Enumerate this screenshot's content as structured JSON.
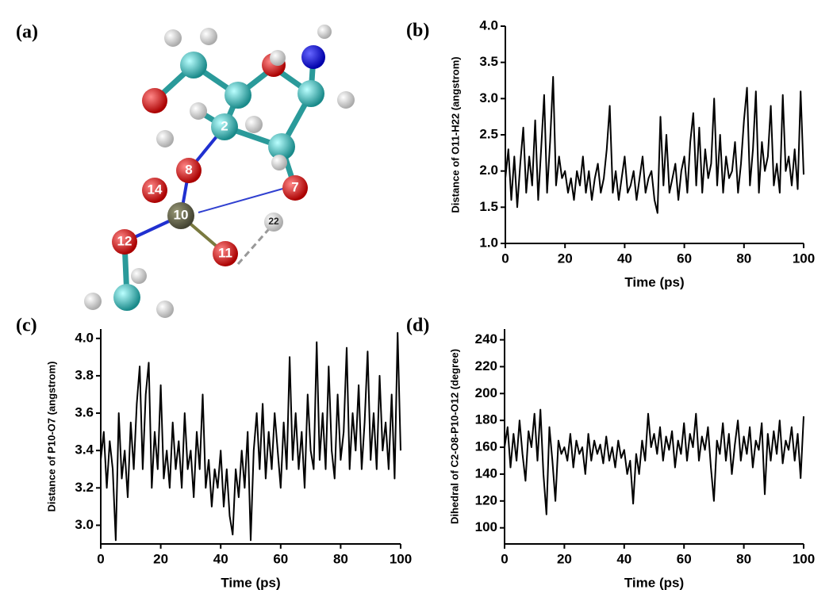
{
  "molecule": {
    "label": "(a)",
    "atoms": [
      "2",
      "8",
      "14",
      "10",
      "7",
      "22",
      "12",
      "11"
    ]
  },
  "chart_data": [
    {
      "type": "line",
      "label": "(b)",
      "x_label": "Time (ps)",
      "y_label": "Distance of O11-H22 (angstrom)",
      "x": [
        0,
        1,
        2,
        3,
        4,
        5,
        6,
        7,
        8,
        9,
        10,
        11,
        12,
        13,
        14,
        15,
        16,
        17,
        18,
        19,
        20,
        21,
        22,
        23,
        24,
        25,
        26,
        27,
        28,
        29,
        30,
        31,
        32,
        33,
        34,
        35,
        36,
        37,
        38,
        39,
        40,
        41,
        42,
        43,
        44,
        45,
        46,
        47,
        48,
        49,
        50,
        51,
        52,
        53,
        54,
        55,
        56,
        57,
        58,
        59,
        60,
        61,
        62,
        63,
        64,
        65,
        66,
        67,
        68,
        69,
        70,
        71,
        72,
        73,
        74,
        75,
        76,
        77,
        78,
        79,
        80,
        81,
        82,
        83,
        84,
        85,
        86,
        87,
        88,
        89,
        90,
        91,
        92,
        93,
        94,
        95,
        96,
        97,
        98,
        99,
        100
      ],
      "values": [
        1.9,
        2.3,
        1.6,
        2.2,
        1.5,
        2.1,
        2.6,
        1.7,
        2.2,
        1.8,
        2.7,
        1.6,
        2.3,
        3.05,
        1.7,
        2.4,
        3.3,
        1.8,
        2.2,
        1.9,
        2.0,
        1.7,
        1.9,
        1.6,
        2.0,
        1.8,
        2.2,
        1.7,
        2.0,
        1.6,
        1.9,
        2.1,
        1.7,
        1.9,
        2.3,
        2.9,
        1.7,
        2.0,
        1.6,
        1.9,
        2.2,
        1.7,
        1.8,
        2.0,
        1.6,
        1.9,
        2.2,
        1.7,
        1.9,
        2.0,
        1.6,
        1.42,
        2.75,
        1.8,
        2.5,
        1.7,
        1.9,
        2.1,
        1.6,
        2.0,
        2.2,
        1.7,
        2.4,
        2.8,
        1.8,
        2.6,
        1.7,
        2.3,
        1.9,
        2.1,
        3.0,
        1.8,
        2.5,
        1.7,
        2.2,
        1.9,
        2.0,
        2.4,
        1.7,
        2.1,
        2.7,
        3.15,
        1.8,
        2.3,
        3.1,
        1.7,
        2.4,
        2.0,
        2.2,
        2.9,
        1.8,
        2.1,
        1.7,
        3.05,
        2.0,
        2.2,
        1.8,
        2.3,
        1.75,
        3.1,
        1.95
      ],
      "color": "#000000",
      "xlim": [
        0,
        100
      ],
      "xticks": [
        0,
        20,
        40,
        60,
        80,
        100
      ],
      "ylim": [
        1.0,
        4.0
      ],
      "yticks": [
        {
          "value": 1,
          "label": "1.0"
        },
        1.5,
        {
          "value": 2,
          "label": "2.0"
        },
        2.5,
        {
          "value": 3,
          "label": "3.0"
        },
        3.5,
        {
          "value": 4,
          "label": "4.0"
        }
      ]
    },
    {
      "type": "line",
      "label": "(c)",
      "x_label": "Time (ps)",
      "y_label": "Distance of P10-O7 (angstrom)",
      "x": [
        0,
        1,
        2,
        3,
        4,
        5,
        6,
        7,
        8,
        9,
        10,
        11,
        12,
        13,
        14,
        15,
        16,
        17,
        18,
        19,
        20,
        21,
        22,
        23,
        24,
        25,
        26,
        27,
        28,
        29,
        30,
        31,
        32,
        33,
        34,
        35,
        36,
        37,
        38,
        39,
        40,
        41,
        42,
        43,
        44,
        45,
        46,
        47,
        48,
        49,
        50,
        51,
        52,
        53,
        54,
        55,
        56,
        57,
        58,
        59,
        60,
        61,
        62,
        63,
        64,
        65,
        66,
        67,
        68,
        69,
        70,
        71,
        72,
        73,
        74,
        75,
        76,
        77,
        78,
        79,
        80,
        81,
        82,
        83,
        84,
        85,
        86,
        87,
        88,
        89,
        90,
        91,
        92,
        93,
        94,
        95,
        96,
        97,
        98,
        99,
        100
      ],
      "values": [
        3.35,
        3.5,
        3.2,
        3.45,
        3.3,
        2.92,
        3.6,
        3.25,
        3.4,
        3.15,
        3.55,
        3.3,
        3.65,
        3.85,
        3.3,
        3.7,
        3.87,
        3.2,
        3.5,
        3.3,
        3.75,
        3.25,
        3.4,
        3.2,
        3.55,
        3.3,
        3.45,
        3.2,
        3.6,
        3.3,
        3.4,
        3.15,
        3.5,
        3.3,
        3.7,
        3.2,
        3.35,
        3.1,
        3.3,
        3.2,
        3.4,
        3.1,
        3.3,
        3.05,
        2.95,
        3.3,
        3.15,
        3.4,
        3.2,
        3.5,
        2.92,
        3.4,
        3.6,
        3.3,
        3.65,
        3.25,
        3.5,
        3.3,
        3.6,
        3.4,
        3.2,
        3.55,
        3.3,
        3.9,
        3.35,
        3.6,
        3.3,
        3.5,
        3.2,
        3.7,
        3.4,
        3.3,
        3.98,
        3.35,
        3.6,
        3.3,
        3.85,
        3.4,
        3.25,
        3.7,
        3.35,
        3.5,
        3.95,
        3.3,
        3.6,
        3.4,
        3.75,
        3.3,
        3.55,
        3.93,
        3.35,
        3.6,
        3.3,
        3.8,
        3.4,
        3.55,
        3.3,
        3.7,
        3.25,
        4.03,
        3.4
      ],
      "color": "#000000",
      "xlim": [
        0,
        100
      ],
      "xticks": [
        0,
        20,
        40,
        60,
        80,
        100
      ],
      "ylim": [
        2.9,
        4.05
      ],
      "yticks": [
        {
          "value": 3,
          "label": "3.0"
        },
        3.2,
        3.4,
        3.6,
        3.8,
        {
          "value": 4,
          "label": "4.0"
        }
      ]
    },
    {
      "type": "line",
      "label": "(d)",
      "x_label": "Time (ps)",
      "y_label": "Dihedral of C2-O8-P10-O12 (degree)",
      "x": [
        0,
        1,
        2,
        3,
        4,
        5,
        6,
        7,
        8,
        9,
        10,
        11,
        12,
        13,
        14,
        15,
        16,
        17,
        18,
        19,
        20,
        21,
        22,
        23,
        24,
        25,
        26,
        27,
        28,
        29,
        30,
        31,
        32,
        33,
        34,
        35,
        36,
        37,
        38,
        39,
        40,
        41,
        42,
        43,
        44,
        45,
        46,
        47,
        48,
        49,
        50,
        51,
        52,
        53,
        54,
        55,
        56,
        57,
        58,
        59,
        60,
        61,
        62,
        63,
        64,
        65,
        66,
        67,
        68,
        69,
        70,
        71,
        72,
        73,
        74,
        75,
        76,
        77,
        78,
        79,
        80,
        81,
        82,
        83,
        84,
        85,
        86,
        87,
        88,
        89,
        90,
        91,
        92,
        93,
        94,
        95,
        96,
        97,
        98,
        99,
        100
      ],
      "values": [
        160,
        175,
        145,
        170,
        150,
        180,
        155,
        135,
        172,
        160,
        185,
        150,
        188,
        140,
        110,
        175,
        150,
        120,
        165,
        155,
        160,
        150,
        170,
        145,
        165,
        155,
        160,
        140,
        170,
        150,
        165,
        155,
        162,
        148,
        168,
        150,
        160,
        145,
        165,
        152,
        158,
        140,
        150,
        118,
        155,
        140,
        165,
        150,
        185,
        160,
        170,
        155,
        175,
        150,
        168,
        158,
        172,
        145,
        165,
        155,
        178,
        150,
        170,
        160,
        185,
        150,
        168,
        158,
        175,
        145,
        120,
        165,
        155,
        178,
        150,
        170,
        140,
        162,
        180,
        150,
        168,
        155,
        175,
        145,
        165,
        158,
        178,
        125,
        170,
        150,
        172,
        155,
        180,
        148,
        165,
        158,
        175,
        150,
        170,
        137,
        183
      ],
      "color": "#000000",
      "xlim": [
        0,
        100
      ],
      "xticks": [
        0,
        20,
        40,
        60,
        80,
        100
      ],
      "ylim": [
        88,
        248
      ],
      "yticks": [
        100,
        120,
        140,
        160,
        180,
        200,
        220,
        240
      ]
    }
  ]
}
